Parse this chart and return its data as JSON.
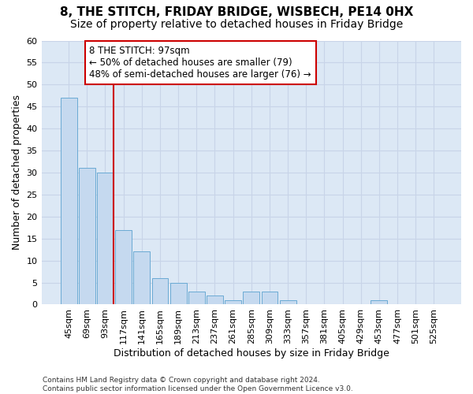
{
  "title": "8, THE STITCH, FRIDAY BRIDGE, WISBECH, PE14 0HX",
  "subtitle": "Size of property relative to detached houses in Friday Bridge",
  "xlabel": "Distribution of detached houses by size in Friday Bridge",
  "ylabel": "Number of detached properties",
  "categories": [
    "45sqm",
    "69sqm",
    "93sqm",
    "117sqm",
    "141sqm",
    "165sqm",
    "189sqm",
    "213sqm",
    "237sqm",
    "261sqm",
    "285sqm",
    "309sqm",
    "333sqm",
    "357sqm",
    "381sqm",
    "405sqm",
    "429sqm",
    "453sqm",
    "477sqm",
    "501sqm",
    "525sqm"
  ],
  "values": [
    47,
    31,
    30,
    17,
    12,
    6,
    5,
    3,
    2,
    1,
    3,
    3,
    1,
    0,
    0,
    0,
    0,
    1,
    0,
    0,
    0
  ],
  "bar_color": "#c5d9ef",
  "bar_edge_color": "#6aaad4",
  "vline_x_index": 2,
  "vline_color": "#cc0000",
  "annotation_line1": "8 THE STITCH: 97sqm",
  "annotation_line2": "← 50% of detached houses are smaller (79)",
  "annotation_line3": "48% of semi-detached houses are larger (76) →",
  "annotation_box_color": "#ffffff",
  "annotation_box_edge": "#cc0000",
  "ylim": [
    0,
    60
  ],
  "yticks": [
    0,
    5,
    10,
    15,
    20,
    25,
    30,
    35,
    40,
    45,
    50,
    55,
    60
  ],
  "grid_color": "#c8d4e8",
  "background_color": "#dce8f5",
  "footer": "Contains HM Land Registry data © Crown copyright and database right 2024.\nContains public sector information licensed under the Open Government Licence v3.0.",
  "title_fontsize": 11,
  "subtitle_fontsize": 10,
  "axis_label_fontsize": 9,
  "tick_fontsize": 8,
  "annotation_fontsize": 8.5,
  "footer_fontsize": 6.5
}
